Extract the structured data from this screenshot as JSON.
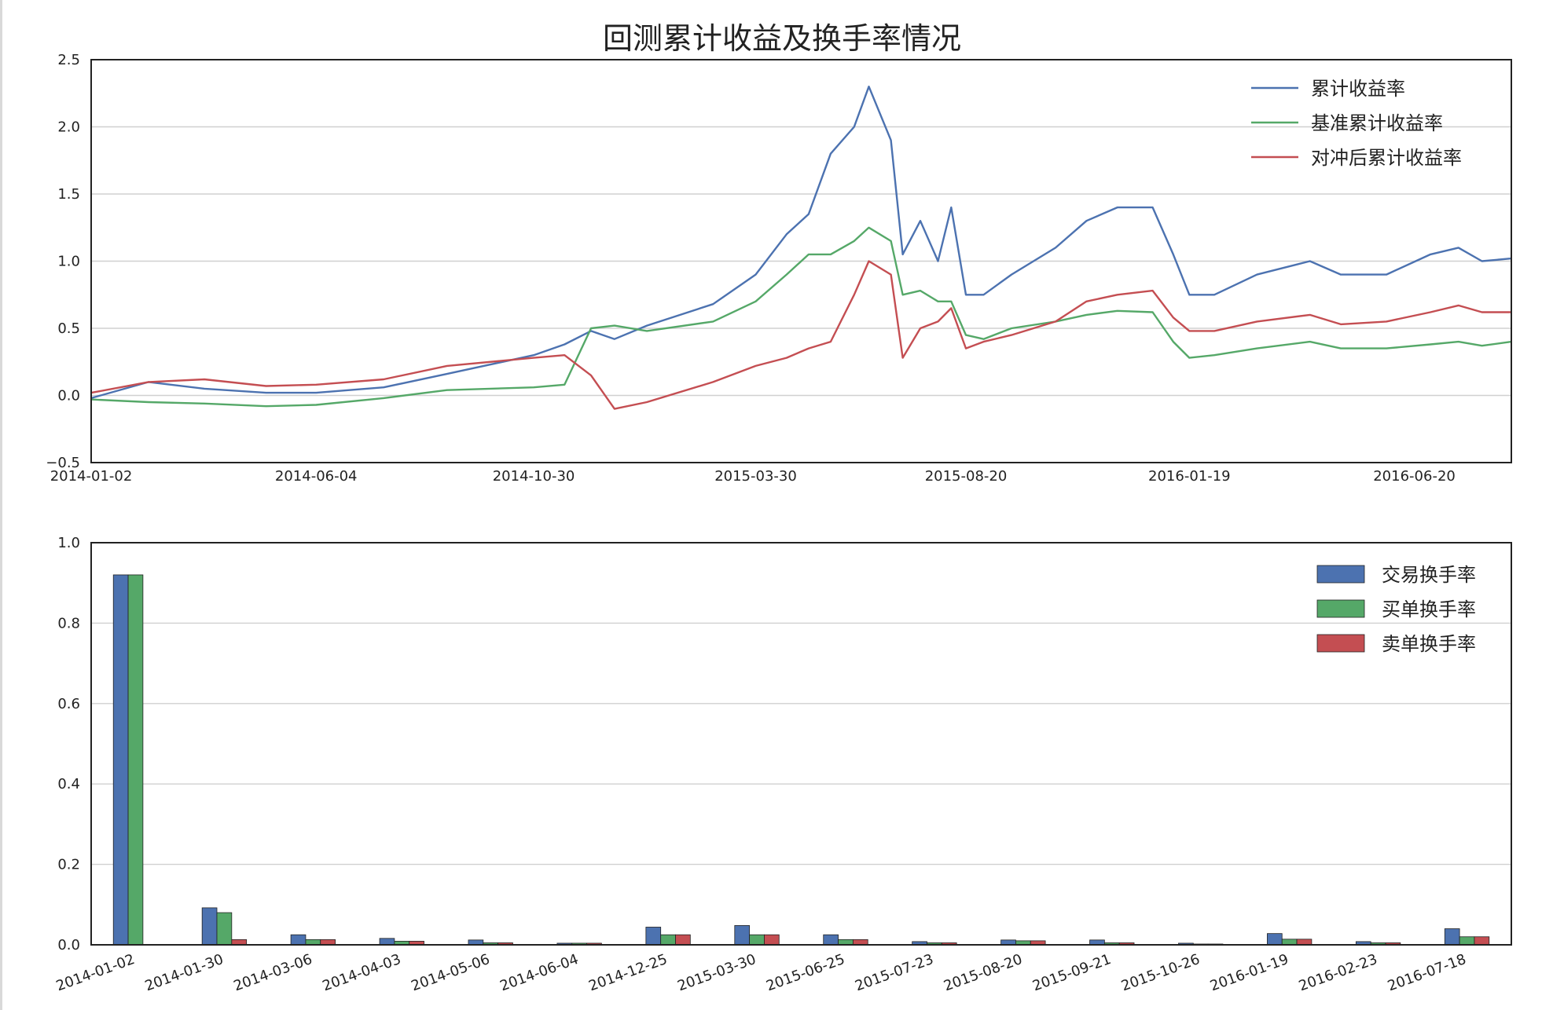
{
  "title": "回测累计收益及换手率情况",
  "colors": {
    "blue": "#4c72b0",
    "green": "#55a868",
    "red": "#c44e52"
  },
  "chart_data": [
    {
      "type": "line",
      "title": "回测累计收益及换手率情况",
      "xlabel": "",
      "ylabel": "",
      "ylim": [
        -0.5,
        2.5
      ],
      "yticks": [
        -0.5,
        0.0,
        0.5,
        1.0,
        1.5,
        2.0,
        2.5
      ],
      "xticks": [
        "2014-01-02",
        "2014-06-04",
        "2014-10-30",
        "2015-03-30",
        "2015-08-20",
        "2016-01-19",
        "2016-06-20"
      ],
      "grid": "horizontal",
      "legend_position": "top-right",
      "x": [
        "2014-01-02",
        "2014-02-10",
        "2014-03-20",
        "2014-05-01",
        "2014-06-04",
        "2014-07-20",
        "2014-09-01",
        "2014-10-30",
        "2014-11-20",
        "2014-12-08",
        "2014-12-24",
        "2015-01-15",
        "2015-03-01",
        "2015-03-30",
        "2015-04-20",
        "2015-05-05",
        "2015-05-20",
        "2015-06-05",
        "2015-06-15",
        "2015-06-30",
        "2015-07-08",
        "2015-07-20",
        "2015-08-01",
        "2015-08-10",
        "2015-08-20",
        "2015-09-01",
        "2015-09-20",
        "2015-10-20",
        "2015-11-10",
        "2015-12-01",
        "2015-12-25",
        "2016-01-08",
        "2016-01-19",
        "2016-02-05",
        "2016-03-05",
        "2016-04-10",
        "2016-05-01",
        "2016-06-01",
        "2016-07-01",
        "2016-07-20",
        "2016-08-05",
        "2016-08-25"
      ],
      "series": [
        {
          "name": "累计收益率",
          "color": "#4c72b0",
          "values": [
            -0.02,
            0.1,
            0.05,
            0.02,
            0.02,
            0.06,
            0.16,
            0.3,
            0.38,
            0.48,
            0.42,
            0.52,
            0.68,
            0.9,
            1.2,
            1.35,
            1.8,
            2.0,
            2.3,
            1.9,
            1.05,
            1.3,
            1.0,
            1.4,
            0.75,
            0.75,
            0.9,
            1.1,
            1.3,
            1.4,
            1.4,
            1.05,
            0.75,
            0.75,
            0.9,
            1.0,
            0.9,
            0.9,
            1.05,
            1.1,
            1.0,
            1.02
          ]
        },
        {
          "name": "基准累计收益率",
          "color": "#55a868",
          "values": [
            -0.03,
            -0.05,
            -0.06,
            -0.08,
            -0.07,
            -0.02,
            0.04,
            0.06,
            0.08,
            0.5,
            0.52,
            0.48,
            0.55,
            0.7,
            0.9,
            1.05,
            1.05,
            1.15,
            1.25,
            1.15,
            0.75,
            0.78,
            0.7,
            0.7,
            0.45,
            0.42,
            0.5,
            0.55,
            0.6,
            0.63,
            0.62,
            0.4,
            0.28,
            0.3,
            0.35,
            0.4,
            0.35,
            0.35,
            0.38,
            0.4,
            0.37,
            0.4
          ]
        },
        {
          "name": "对冲后累计收益率",
          "color": "#c44e52",
          "values": [
            0.02,
            0.1,
            0.12,
            0.07,
            0.08,
            0.12,
            0.22,
            0.28,
            0.3,
            0.15,
            -0.1,
            -0.05,
            0.1,
            0.22,
            0.28,
            0.35,
            0.4,
            0.75,
            1.0,
            0.9,
            0.28,
            0.5,
            0.55,
            0.65,
            0.35,
            0.4,
            0.45,
            0.55,
            0.7,
            0.75,
            0.78,
            0.58,
            0.48,
            0.48,
            0.55,
            0.6,
            0.53,
            0.55,
            0.62,
            0.67,
            0.62,
            0.62
          ]
        }
      ]
    },
    {
      "type": "bar",
      "ylim": [
        0,
        1.0
      ],
      "yticks": [
        0.0,
        0.2,
        0.4,
        0.6,
        0.8,
        1.0
      ],
      "categories": [
        "2014-01-02",
        "2014-01-30",
        "2014-03-06",
        "2014-04-03",
        "2014-05-06",
        "2014-06-04",
        "2014-12-25",
        "2015-03-30",
        "2015-06-25",
        "2015-07-23",
        "2015-08-20",
        "2015-09-21",
        "2015-10-26",
        "2016-01-19",
        "2016-02-23",
        "2016-07-18"
      ],
      "grid": "horizontal",
      "legend_position": "top-right",
      "series": [
        {
          "name": "交易换手率",
          "color": "#4c72b0",
          "values": [
            0.92,
            0.092,
            0.025,
            0.016,
            0.012,
            0.004,
            0.044,
            0.048,
            0.025,
            0.008,
            0.012,
            0.012,
            0.004,
            0.028,
            0.008,
            0.04
          ]
        },
        {
          "name": "买单换手率",
          "color": "#55a868",
          "values": [
            0.92,
            0.08,
            0.013,
            0.009,
            0.005,
            0.004,
            0.025,
            0.025,
            0.013,
            0.005,
            0.01,
            0.005,
            0.002,
            0.014,
            0.005,
            0.02
          ]
        },
        {
          "name": "卖单换手率",
          "color": "#c44e52",
          "values": [
            0.0,
            0.013,
            0.013,
            0.009,
            0.005,
            0.004,
            0.025,
            0.025,
            0.013,
            0.005,
            0.01,
            0.005,
            0.002,
            0.014,
            0.005,
            0.02
          ]
        }
      ]
    }
  ]
}
